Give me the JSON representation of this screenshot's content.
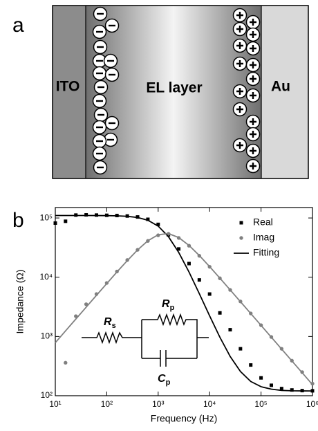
{
  "diagram": {
    "panel_label": "a",
    "regions": [
      "ITO",
      "EL layer",
      "Au"
    ]
  },
  "chart_data": {
    "type": "line",
    "panel_label": "b",
    "xlabel": "Frequency (Hz)",
    "ylabel": "Impedance (Ω)",
    "log_x": true,
    "log_y": true,
    "grid": false,
    "legend": "upper right",
    "xlim": [
      10,
      1000000
    ],
    "ylim": [
      100,
      150000
    ],
    "xticks": [
      {
        "value": 10,
        "label": "10¹"
      },
      {
        "value": 100,
        "label": "10²"
      },
      {
        "value": 1000,
        "label": "10³"
      },
      {
        "value": 10000,
        "label": "10⁴"
      },
      {
        "value": 100000,
        "label": "10⁵"
      },
      {
        "value": 1000000,
        "label": "10⁶"
      }
    ],
    "yticks": [
      {
        "value": 100,
        "label": "10²"
      },
      {
        "value": 1000,
        "label": "10³"
      },
      {
        "value": 10000,
        "label": "10⁴"
      },
      {
        "value": 100000,
        "label": "10⁵"
      }
    ],
    "x": [
      10,
      15.8,
      25.1,
      39.8,
      63.1,
      100,
      158,
      251,
      398,
      631,
      1000,
      1585,
      2512,
      3981,
      6310,
      10000,
      15850,
      25120,
      39810,
      63100,
      100000,
      158500,
      251200,
      398100,
      631000,
      1000000
    ],
    "series": [
      {
        "name": "Real",
        "color": "#000000",
        "style": "square",
        "values": [
          82000,
          88000,
          112000,
          113000,
          112000,
          111000,
          110000,
          108000,
          104000,
          95000,
          78000,
          52000,
          30000,
          17000,
          9000,
          5200,
          2500,
          1300,
          620,
          330,
          200,
          150,
          132,
          125,
          122,
          121
        ]
      },
      {
        "name": "Imag",
        "color": "#808080",
        "style": "circle",
        "values": [
          null,
          360,
          2200,
          3500,
          5200,
          8000,
          12500,
          19500,
          29000,
          41000,
          51000,
          54000,
          46000,
          34000,
          23000,
          15000,
          9600,
          6100,
          3900,
          2450,
          1550,
          980,
          620,
          390,
          250,
          160
        ]
      },
      {
        "name": "Fitting",
        "color": "#000000",
        "style": "line",
        "values": [
          110120,
          110100,
          110080,
          110030,
          109900,
          109560,
          108730,
          106700,
          101880,
          91560,
          72970,
          48330,
          26190,
          12220,
          5280,
          2235,
          970,
          460,
          256,
          174,
          142,
          129,
          123,
          121,
          120.5,
          120.2
        ]
      },
      {
        "color": "#808080",
        "style": "line",
        "values": [
          785,
          1242,
          1970,
          3120,
          4950,
          7810,
          12270,
          19080,
          28900,
          41240,
          52010,
          54570,
          46760,
          34420,
          23270,
          15100,
          9640,
          6110,
          3860,
          2440,
          1540,
          971,
          613,
          387,
          244,
          154
        ]
      }
    ],
    "circuit": [
      {
        "symbol": "R",
        "subscript": "s"
      },
      {
        "symbol": "R",
        "subscript": "p"
      },
      {
        "symbol": "C",
        "subscript": "p"
      }
    ]
  }
}
